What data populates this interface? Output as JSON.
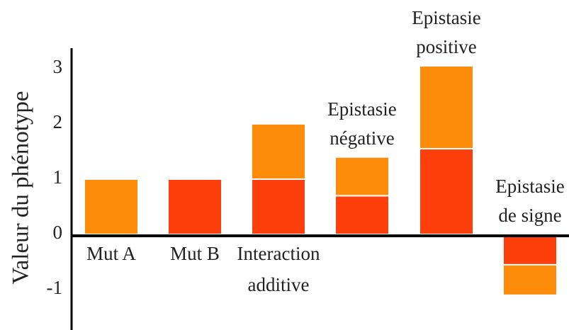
{
  "chart_data": {
    "type": "stacked_bar",
    "y_label": "Valeur du phénotype",
    "categories": [
      [
        "Mut A"
      ],
      [
        "Mut B"
      ],
      [
        "Interaction",
        "additive"
      ],
      [
        "Epistasie",
        "négative"
      ],
      [
        "Epistasie",
        "positive"
      ],
      [
        "Epistasie",
        "de signe"
      ]
    ],
    "series": [
      {
        "color": "#fd3f0c",
        "values": [
          null,
          1,
          1,
          0.7,
          1.55,
          -0.55
        ]
      },
      {
        "color": "#fd8c0a",
        "values": [
          1,
          null,
          1,
          0.7,
          1.5,
          -0.55
        ]
      }
    ],
    "ylim": [
      -1.73,
      3.37
    ],
    "yticks": [
      -1,
      0,
      1,
      2,
      3
    ]
  }
}
